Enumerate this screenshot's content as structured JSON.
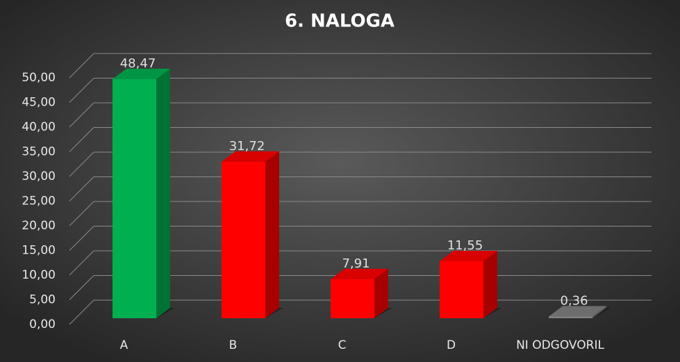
{
  "chart_data": {
    "type": "bar3d",
    "title": "6. NALOGA",
    "categories": [
      "A",
      "B",
      "C",
      "D",
      "NI ODGOVORIL"
    ],
    "values": [
      48.47,
      31.72,
      7.91,
      11.55,
      0.36
    ],
    "value_labels": [
      "48,47",
      "31,72",
      "7,91",
      "11,55",
      "0,36"
    ],
    "colors": [
      "#00b050",
      "#ff0000",
      "#ff0000",
      "#ff0000",
      "#808080"
    ],
    "ylim": [
      0,
      50
    ],
    "yticks": [
      {
        "value": 0,
        "label": "0,00"
      },
      {
        "value": 5,
        "label": "5,00"
      },
      {
        "value": 10,
        "label": "10,00"
      },
      {
        "value": 15,
        "label": "15,00"
      },
      {
        "value": 20,
        "label": "20,00"
      },
      {
        "value": 25,
        "label": "25,00"
      },
      {
        "value": 30,
        "label": "30,00"
      },
      {
        "value": 35,
        "label": "35,00"
      },
      {
        "value": 40,
        "label": "40,00"
      },
      {
        "value": 45,
        "label": "45,00"
      },
      {
        "value": 50,
        "label": "50,00"
      }
    ],
    "grid": true
  }
}
